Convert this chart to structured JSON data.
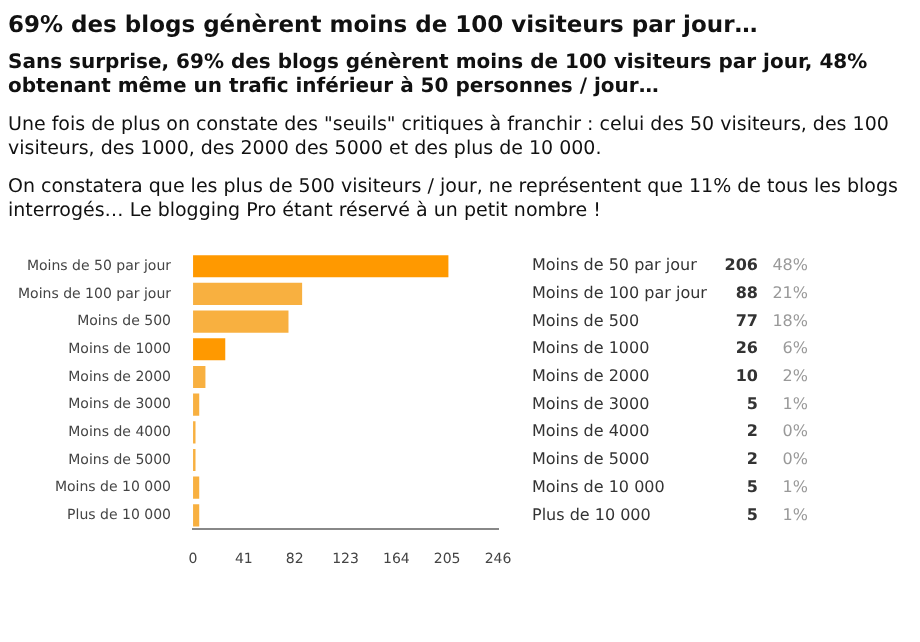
{
  "chart_data": {
    "type": "bar",
    "orientation": "horizontal",
    "title": "69% des blogs génèrent moins de 100 visiteurs par jour…",
    "subtitle": "Sans surprise, 69% des blogs génèrent moins de 100 visiteurs par jour, 48% obtenant même un trafic inférieur à 50 personnes / jour…",
    "annotations": [
      "Une fois de plus on constate des \"seuils\" critiques à franchir : celui des 50 visiteurs, des 100 visiteurs, des 1000, des 2000 des 5000 et des plus de 10 000.",
      "On constatera que les plus de 500 visiteurs / jour, ne représentent que 11% de tous les blogs interrogés… Le blogging Pro étant réservé à un petit nombre !",
      "48%",
      "21%",
      "18%",
      "6%",
      "2%",
      "1%",
      "0%",
      "0%",
      "1%",
      "1%"
    ],
    "categories": [
      "Moins de 50 par jour",
      "Moins de 100 par jour",
      "Moins de 500",
      "Moins de 1000",
      "Moins de 2000",
      "Moins de 3000",
      "Moins de 4000",
      "Moins de 5000",
      "Moins de 10 000",
      "Plus de 10 000"
    ],
    "values": [
      206,
      88,
      77,
      26,
      10,
      5,
      2,
      2,
      5,
      5
    ],
    "colors": [
      "#ff9900",
      "#f8b040",
      "#f8b040",
      "#ff9900",
      "#f8b040",
      "#f8b040",
      "#f8b040",
      "#f8b040",
      "#f8b040",
      "#f8b040"
    ],
    "data_labels": true,
    "xlim": [
      0,
      246
    ],
    "xticks": [
      0,
      41,
      82,
      123,
      164,
      205,
      246
    ],
    "grid": false,
    "legend": false
  }
}
